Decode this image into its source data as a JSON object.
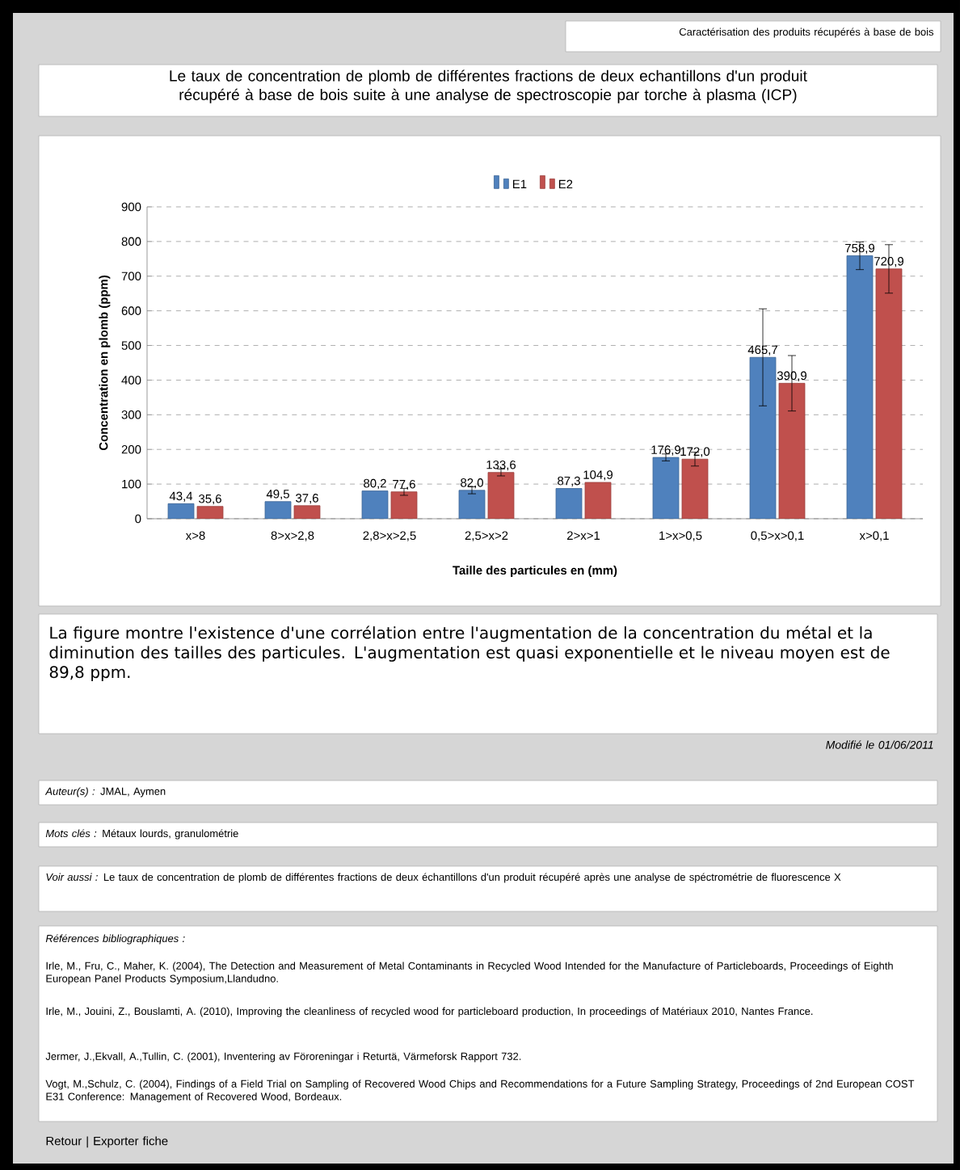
{
  "chart_data": {
    "type": "bar",
    "title": "Le taux de concentration de plomb de différentes fractions de deux echantillons d'un produit récupéré à base de bois suite à une analyse de spectroscopie par torche à plasma (ICP)",
    "annotations": [
      "Caractérisation des produits récupérés à base de bois",
      "La figure montre l'existence d'une corrélation entre l'augmentation de la concentration du métal et la diminution des tailles des particules. L'augmentation est quasi exponentielle et le niveau moyen est de 89,8 ppm.",
      "*Modifié le 01/06/2011*",
      "*Auteur(s) :* JMAL, Aymen",
      "*Mots clés :* Métaux lourds, granulométrie",
      "*Voir aussi :* Le taux de concentration de plomb de différentes fractions de deux échantillons d'un produit récupéré après une analyse de spéctrométrie de fluorescence X",
      "*Références bibliographiques :*",
      "Irle, M., Fru, C., Maher, K. (2004), The Detection and Measurement of Metal Contaminants in Recycled Wood Intended for the Manufacture of Particleboards, Proceedings of Eighth European Panel Products Symposium,Llandudno.",
      "Irle, M., Jouini, Z., Bouslamti, A. (2010), Improving the cleanliness of recycled wood for particleboard production, In proceedings of Matériaux 2010, Nantes France.",
      "Jermer, J.,Ekvall, A.,Tullin, C. (2001), Inventering av Föroreningar i Returtä, Värmeforsk Rapport 732.",
      "Vogt, M.,Schulz, C. (2004), Findings of a Field Trial on Sampling of Recovered Wood Chips and Recommendations for a Future Sampling Strategy, Proceedings of 2nd European COST E31 Conference: Management of Recovered Wood, Bordeaux.",
      "Retour |  Exporter fiche"
    ],
    "xlabel": "Taille  des particules en (mm)",
    "ylabel": "Concentration en plomb (ppm)",
    "categories": [
      "x>8",
      "8>x>2,8",
      "2,8>x>2,5",
      "2,5>x>2",
      "2>x>1",
      "1>x>0,5",
      "0,5>x>0,1",
      "x>0,1"
    ],
    "series": [
      {
        "name": "E1",
        "color": "#4f81bd",
        "values": [
          43.4,
          49.5,
          80.2,
          82.0,
          87.3,
          176.9,
          465.7,
          758.9
        ],
        "value_labels": [
          "43,4",
          "49,5",
          "80,2",
          "82,0",
          "87,3",
          "176,9",
          "465,7",
          "758,9"
        ],
        "errors": [
          null,
          null,
          null,
          10,
          null,
          10,
          [
            140,
            140
          ],
          40
        ]
      },
      {
        "name": "E2",
        "color": "#c0504d",
        "values": [
          35.6,
          37.6,
          77.6,
          133.6,
          104.9,
          172.0,
          390.9,
          720.9
        ],
        "value_labels": [
          "35,6",
          "37,6",
          "77,6",
          "133,6",
          "104,9",
          "172,0",
          "390,9",
          "720,9"
        ],
        "errors": [
          null,
          null,
          10,
          10,
          null,
          20,
          80,
          70
        ]
      }
    ],
    "ylim": [
      0,
      900
    ],
    "yticks": [
      0,
      100,
      200,
      300,
      400,
      500,
      600,
      700,
      800,
      900
    ],
    "grid": "y",
    "legend": "top"
  }
}
